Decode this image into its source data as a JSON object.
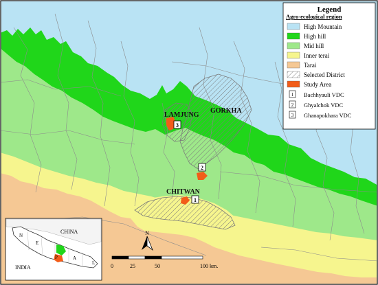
{
  "legend": {
    "title": "Legend",
    "subtitle": "Agro-ecological region",
    "regions": [
      {
        "label": "High Mountain",
        "color": "#b9e3f4"
      },
      {
        "label": "High hill",
        "color": "#20d61a"
      },
      {
        "label": "Mid hill",
        "color": "#9ee88a"
      },
      {
        "label": "Inner terai",
        "color": "#f6f58e"
      },
      {
        "label": "Tarai",
        "color": "#f5c894"
      }
    ],
    "selected_district": "Selected District",
    "study_area": "Study Area",
    "study_area_color": "#f25c19",
    "vdcs": [
      {
        "num": "1",
        "name": "Bachhyauli VDC"
      },
      {
        "num": "2",
        "name": "Ghyalchok VDC"
      },
      {
        "num": "3",
        "name": "Ghanapokhara VDC"
      }
    ]
  },
  "districts": {
    "lamjung": "LAMJUNG",
    "gorkha": "GORKHA",
    "chitwan": "CHITWAN"
  },
  "markers": {
    "m1": "1",
    "m2": "2",
    "m3": "3"
  },
  "north": "N",
  "scale": {
    "t0": "0",
    "t1": "25",
    "t2": "50",
    "t3": "100 km."
  },
  "inset": {
    "china": "CHINA",
    "india": "INDIA",
    "letters": [
      "N",
      "E",
      "P",
      "A",
      "L"
    ]
  }
}
